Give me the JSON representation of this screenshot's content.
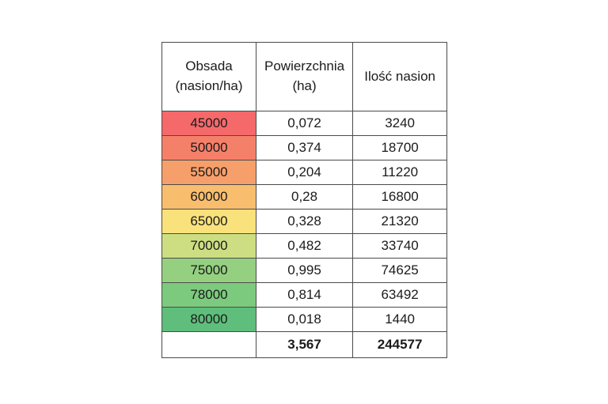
{
  "table": {
    "headers": {
      "obsada": "Obsada (nasion/ha)",
      "powierzchnia": "Powierzchnia (ha)",
      "ilosc": "Ilość nasion"
    },
    "rows": [
      {
        "obsada": "45000",
        "powierzchnia": "0,072",
        "ilosc": "3240",
        "color": "#F5696B"
      },
      {
        "obsada": "50000",
        "powierzchnia": "0,374",
        "ilosc": "18700",
        "color": "#F5806A"
      },
      {
        "obsada": "55000",
        "powierzchnia": "0,204",
        "ilosc": "11220",
        "color": "#F79F6A"
      },
      {
        "obsada": "60000",
        "powierzchnia": "0,28",
        "ilosc": "16800",
        "color": "#F8BE6E"
      },
      {
        "obsada": "65000",
        "powierzchnia": "0,328",
        "ilosc": "21320",
        "color": "#F9E27C"
      },
      {
        "obsada": "70000",
        "powierzchnia": "0,482",
        "ilosc": "33740",
        "color": "#CDDE82"
      },
      {
        "obsada": "75000",
        "powierzchnia": "0,995",
        "ilosc": "74625",
        "color": "#94D080"
      },
      {
        "obsada": "78000",
        "powierzchnia": "0,814",
        "ilosc": "63492",
        "color": "#7CCA7D"
      },
      {
        "obsada": "80000",
        "powierzchnia": "0,018",
        "ilosc": "1440",
        "color": "#5FBE7C"
      }
    ],
    "total": {
      "obsada": "",
      "powierzchnia": "3,567",
      "ilosc": "244577"
    }
  }
}
